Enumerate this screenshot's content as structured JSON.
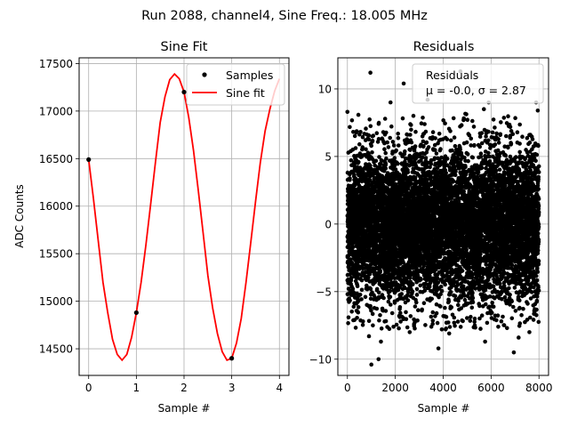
{
  "suptitle": "Run 2088, channel4, Sine Freq.: 18.005 MHz",
  "chart_data": [
    {
      "type": "line",
      "title": "Sine Fit",
      "xlabel": "Sample #",
      "ylabel": "ADC Counts",
      "xlim": [
        -0.2,
        4.2
      ],
      "ylim": [
        14220,
        17560
      ],
      "xticks": [
        0,
        1,
        2,
        3,
        4
      ],
      "yticks": [
        14500,
        15000,
        15500,
        16000,
        16500,
        17000,
        17500
      ],
      "grid": true,
      "legend": {
        "placement": "top-right",
        "entries": [
          "Samples",
          "Sine fit"
        ]
      },
      "samples": {
        "name": "Samples",
        "color": "#000000",
        "x": [
          0,
          1,
          2,
          3
        ],
        "y": [
          16490,
          14880,
          17200,
          14400
        ]
      },
      "fit": {
        "name": "Sine fit",
        "color": "#ff0000",
        "x": [
          0,
          0.1,
          0.2,
          0.3,
          0.4,
          0.5,
          0.6,
          0.7,
          0.8,
          0.9,
          1.0,
          1.1,
          1.2,
          1.3,
          1.4,
          1.5,
          1.6,
          1.7,
          1.8,
          1.9,
          2.0,
          2.1,
          2.2,
          2.3,
          2.4,
          2.5,
          2.6,
          2.7,
          2.8,
          2.9,
          3.0,
          3.1,
          3.2,
          3.3,
          3.4,
          3.5,
          3.6,
          3.7,
          3.8,
          3.9,
          4.0
        ],
        "y": [
          16490,
          16080,
          15640,
          15200,
          14880,
          14600,
          14440,
          14380,
          14440,
          14620,
          14880,
          15200,
          15590,
          16020,
          16460,
          16880,
          17150,
          17330,
          17390,
          17340,
          17200,
          16930,
          16580,
          16160,
          15720,
          15270,
          14930,
          14660,
          14470,
          14380,
          14400,
          14560,
          14820,
          15200,
          15620,
          16050,
          16460,
          16790,
          17020,
          17210,
          17340
        ]
      }
    },
    {
      "type": "scatter",
      "title": "Residuals",
      "xlabel": "Sample #",
      "xlim": [
        -400,
        8400
      ],
      "ylim": [
        -11.2,
        12.3
      ],
      "xticks": [
        0,
        2000,
        4000,
        6000,
        8000
      ],
      "yticks": [
        -10,
        -5,
        0,
        5,
        10
      ],
      "grid": true,
      "color": "#000000",
      "legend": {
        "placement": "top-right",
        "entries": [
          "Residuals",
          "μ = -0.0, σ = 2.87"
        ]
      },
      "stats": {
        "mean": -0.0,
        "sigma": 2.87,
        "n_points": 8000
      },
      "outliers": [
        {
          "x": 960,
          "y": 11.2
        },
        {
          "x": 2350,
          "y": 10.4
        },
        {
          "x": 4720,
          "y": 11.3
        },
        {
          "x": 1000,
          "y": -10.4
        },
        {
          "x": 1300,
          "y": -10.0
        },
        {
          "x": 3800,
          "y": -9.2
        },
        {
          "x": 6950,
          "y": -9.5
        },
        {
          "x": 1800,
          "y": 9.0
        },
        {
          "x": 5900,
          "y": 9.0
        },
        {
          "x": 7880,
          "y": 9.0
        },
        {
          "x": 3350,
          "y": 9.2
        },
        {
          "x": 0,
          "y": 8.3
        },
        {
          "x": 7950,
          "y": 8.4
        },
        {
          "x": 5700,
          "y": 8.5
        },
        {
          "x": 900,
          "y": -8.3
        },
        {
          "x": 1400,
          "y": -8.7
        },
        {
          "x": 2600,
          "y": -8.0
        },
        {
          "x": 5750,
          "y": -8.7
        },
        {
          "x": 7150,
          "y": -8.4
        },
        {
          "x": 7600,
          "y": -8.0
        },
        {
          "x": 4250,
          "y": -8.1
        },
        {
          "x": 6300,
          "y": -7.6
        }
      ]
    }
  ]
}
